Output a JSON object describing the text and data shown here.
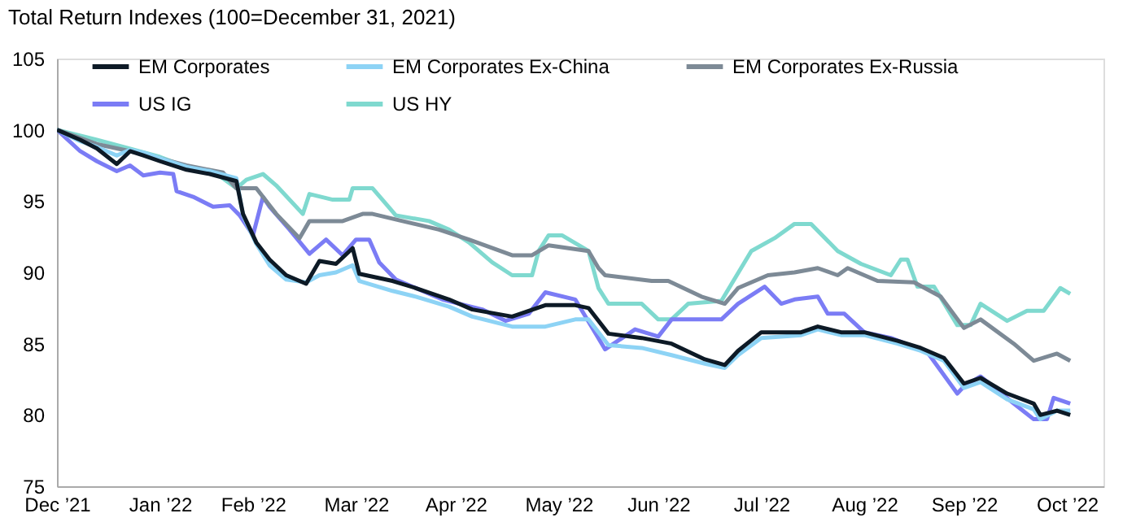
{
  "chart_data": {
    "type": "line",
    "title": "Total Return Indexes (100=December 31, 2021)",
    "xlim": [
      "2021-12-31",
      "2022-11-11"
    ],
    "xticks": [
      {
        "value": "2021-12-31",
        "label": "Dec ’21"
      },
      {
        "value": "2022-01-31",
        "label": "Jan ’22"
      },
      {
        "value": "2022-02-28",
        "label": "Feb ’22"
      },
      {
        "value": "2022-03-31",
        "label": "Mar ’22"
      },
      {
        "value": "2022-04-30",
        "label": "Apr ’22"
      },
      {
        "value": "2022-05-31",
        "label": "May ’22"
      },
      {
        "value": "2022-06-30",
        "label": "Jun ’22"
      },
      {
        "value": "2022-07-31",
        "label": "Jul ’22"
      },
      {
        "value": "2022-08-31",
        "label": "Aug ’22"
      },
      {
        "value": "2022-09-30",
        "label": "Sep ’22"
      },
      {
        "value": "2022-10-31",
        "label": "Oct ’22"
      }
    ],
    "ylim": [
      75,
      105
    ],
    "yticks": [
      75,
      80,
      85,
      90,
      95,
      100,
      105
    ],
    "grid": false,
    "legend": "top",
    "line_style": "solid",
    "marker": "none",
    "series": [
      {
        "name": "EM Corporates",
        "color": "#0d1a26",
        "x": [
          "2021-12-31",
          "2022-01-07",
          "2022-01-12",
          "2022-01-18",
          "2022-01-22",
          "2022-01-26",
          "2022-01-31",
          "2022-02-08",
          "2022-02-15",
          "2022-02-23",
          "2022-02-25",
          "2022-03-01",
          "2022-03-05",
          "2022-03-10",
          "2022-03-16",
          "2022-03-20",
          "2022-03-25",
          "2022-03-30",
          "2022-04-01",
          "2022-04-11",
          "2022-04-18",
          "2022-04-28",
          "2022-05-05",
          "2022-05-17",
          "2022-05-27",
          "2022-06-05",
          "2022-06-09",
          "2022-06-15",
          "2022-06-25",
          "2022-07-04",
          "2022-07-14",
          "2022-07-20",
          "2022-07-24",
          "2022-07-31",
          "2022-08-12",
          "2022-08-17",
          "2022-08-24",
          "2022-08-31",
          "2022-09-10",
          "2022-09-17",
          "2022-09-24",
          "2022-09-30",
          "2022-10-05",
          "2022-10-13",
          "2022-10-21",
          "2022-10-23",
          "2022-10-28",
          "2022-11-01"
        ],
        "values": [
          100,
          99.3,
          98.7,
          97.6,
          98.5,
          98.2,
          97.8,
          97.2,
          96.9,
          96.4,
          94.1,
          92.1,
          90.9,
          89.8,
          89.2,
          90.8,
          90.6,
          91.7,
          89.9,
          89.4,
          88.9,
          88.1,
          87.4,
          86.9,
          87.7,
          87.7,
          87.5,
          85.7,
          85.4,
          85.0,
          83.9,
          83.5,
          84.5,
          85.8,
          85.8,
          86.2,
          85.8,
          85.8,
          85.2,
          84.7,
          84.0,
          82.2,
          82.6,
          81.5,
          80.8,
          80.0,
          80.3,
          80.0
        ]
      },
      {
        "name": "EM Corporates Ex-China",
        "color": "#8dd3f5",
        "x": [
          "2021-12-31",
          "2022-01-07",
          "2022-01-12",
          "2022-01-18",
          "2022-01-22",
          "2022-01-26",
          "2022-01-31",
          "2022-02-08",
          "2022-02-15",
          "2022-02-23",
          "2022-02-25",
          "2022-03-01",
          "2022-03-05",
          "2022-03-10",
          "2022-03-16",
          "2022-03-20",
          "2022-03-25",
          "2022-03-30",
          "2022-04-01",
          "2022-04-11",
          "2022-04-18",
          "2022-04-28",
          "2022-05-05",
          "2022-05-17",
          "2022-05-27",
          "2022-06-05",
          "2022-06-09",
          "2022-06-15",
          "2022-06-25",
          "2022-07-04",
          "2022-07-14",
          "2022-07-20",
          "2022-07-24",
          "2022-07-31",
          "2022-08-12",
          "2022-08-17",
          "2022-08-24",
          "2022-08-31",
          "2022-09-10",
          "2022-09-17",
          "2022-09-24",
          "2022-09-30",
          "2022-10-05",
          "2022-10-13",
          "2022-10-21",
          "2022-10-23",
          "2022-10-28",
          "2022-11-01"
        ],
        "values": [
          100,
          99.2,
          98.8,
          98.2,
          98.6,
          98.4,
          98.0,
          97.4,
          97.1,
          96.6,
          94.0,
          92.0,
          90.5,
          89.5,
          89.3,
          89.8,
          90.0,
          90.5,
          89.4,
          88.7,
          88.3,
          87.6,
          86.9,
          86.2,
          86.2,
          86.7,
          86.7,
          84.9,
          84.7,
          84.2,
          83.6,
          83.3,
          84.2,
          85.4,
          85.6,
          86.0,
          85.6,
          85.6,
          85.0,
          84.5,
          83.8,
          81.9,
          82.3,
          81.1,
          80.4,
          79.7,
          80.3,
          80.3
        ]
      },
      {
        "name": "EM Corporates Ex-Russia",
        "color": "#7d8a96",
        "x": [
          "2021-12-31",
          "2022-01-12",
          "2022-01-26",
          "2022-02-08",
          "2022-02-19",
          "2022-02-23",
          "2022-03-01",
          "2022-03-07",
          "2022-03-14",
          "2022-03-17",
          "2022-03-27",
          "2022-04-02",
          "2022-04-05",
          "2022-04-14",
          "2022-04-25",
          "2022-05-04",
          "2022-05-17",
          "2022-05-23",
          "2022-05-28",
          "2022-06-09",
          "2022-06-12",
          "2022-06-14",
          "2022-06-28",
          "2022-07-03",
          "2022-07-13",
          "2022-07-20",
          "2022-07-24",
          "2022-08-02",
          "2022-08-10",
          "2022-08-17",
          "2022-08-23",
          "2022-08-26",
          "2022-09-04",
          "2022-09-15",
          "2022-09-23",
          "2022-09-30",
          "2022-10-05",
          "2022-10-15",
          "2022-10-21",
          "2022-10-28",
          "2022-11-01"
        ],
        "values": [
          100,
          99.0,
          98.3,
          97.5,
          97.0,
          95.9,
          95.9,
          94.1,
          92.4,
          93.6,
          93.6,
          94.1,
          94.1,
          93.6,
          93.0,
          92.3,
          91.2,
          91.2,
          91.9,
          91.5,
          90.3,
          89.8,
          89.4,
          89.4,
          88.3,
          87.8,
          88.9,
          89.8,
          90.0,
          90.3,
          89.8,
          90.3,
          89.4,
          89.3,
          88.3,
          86.1,
          86.7,
          85.0,
          83.8,
          84.3,
          83.8
        ]
      },
      {
        "name": "US IG",
        "color": "#7b7cf5",
        "x": [
          "2021-12-31",
          "2022-01-07",
          "2022-01-12",
          "2022-01-18",
          "2022-01-22",
          "2022-01-26",
          "2022-01-31",
          "2022-02-04",
          "2022-02-05",
          "2022-02-10",
          "2022-02-16",
          "2022-02-21",
          "2022-02-24",
          "2022-02-28",
          "2022-03-03",
          "2022-03-05",
          "2022-03-11",
          "2022-03-17",
          "2022-03-22",
          "2022-03-27",
          "2022-03-31",
          "2022-04-04",
          "2022-04-07",
          "2022-04-12",
          "2022-04-26",
          "2022-05-08",
          "2022-05-15",
          "2022-05-22",
          "2022-05-27",
          "2022-06-05",
          "2022-06-14",
          "2022-06-23",
          "2022-06-30",
          "2022-07-04",
          "2022-07-19",
          "2022-07-24",
          "2022-08-01",
          "2022-08-06",
          "2022-08-10",
          "2022-08-17",
          "2022-08-20",
          "2022-08-25",
          "2022-08-31",
          "2022-09-08",
          "2022-09-19",
          "2022-09-28",
          "2022-09-30",
          "2022-10-05",
          "2022-10-15",
          "2022-10-21",
          "2022-10-25",
          "2022-10-27",
          "2022-11-01"
        ],
        "values": [
          100,
          98.5,
          97.8,
          97.1,
          97.5,
          96.8,
          97.0,
          96.9,
          95.7,
          95.3,
          94.6,
          94.7,
          94.0,
          92.6,
          95.3,
          94.6,
          93.0,
          91.3,
          92.3,
          91.2,
          92.3,
          92.3,
          90.7,
          89.5,
          88.1,
          87.4,
          86.6,
          87.1,
          88.6,
          88.1,
          84.6,
          86.0,
          85.5,
          86.7,
          86.7,
          87.8,
          89.0,
          87.8,
          88.1,
          88.3,
          87.1,
          87.1,
          85.8,
          85.4,
          84.4,
          81.5,
          82.0,
          82.7,
          80.8,
          79.7,
          79.7,
          81.2,
          80.8
        ]
      },
      {
        "name": "US HY",
        "color": "#7fd9cf",
        "x": [
          "2021-12-31",
          "2022-01-12",
          "2022-01-20",
          "2022-01-31",
          "2022-02-09",
          "2022-02-16",
          "2022-02-23",
          "2022-02-26",
          "2022-03-03",
          "2022-03-07",
          "2022-03-15",
          "2022-03-17",
          "2022-03-24",
          "2022-03-29",
          "2022-03-30",
          "2022-04-05",
          "2022-04-12",
          "2022-04-22",
          "2022-04-28",
          "2022-05-04",
          "2022-05-11",
          "2022-05-17",
          "2022-05-23",
          "2022-05-25",
          "2022-05-28",
          "2022-06-01",
          "2022-06-09",
          "2022-06-12",
          "2022-06-15",
          "2022-06-25",
          "2022-06-30",
          "2022-07-04",
          "2022-07-09",
          "2022-07-19",
          "2022-07-28",
          "2022-08-04",
          "2022-08-10",
          "2022-08-15",
          "2022-08-23",
          "2022-08-30",
          "2022-09-08",
          "2022-09-11",
          "2022-09-13",
          "2022-09-16",
          "2022-09-21",
          "2022-09-28",
          "2022-10-02",
          "2022-10-05",
          "2022-10-13",
          "2022-10-19",
          "2022-10-24",
          "2022-10-29",
          "2022-11-01"
        ],
        "values": [
          100,
          99.3,
          98.8,
          98.1,
          97.3,
          97.1,
          95.9,
          96.5,
          96.9,
          96.1,
          94.1,
          95.5,
          95.1,
          95.1,
          95.9,
          95.9,
          94.0,
          93.6,
          93.0,
          92.1,
          90.7,
          89.8,
          89.8,
          91.5,
          92.6,
          92.6,
          91.5,
          88.9,
          87.8,
          87.8,
          86.7,
          86.7,
          87.8,
          88.0,
          91.5,
          92.4,
          93.4,
          93.4,
          91.5,
          90.6,
          89.8,
          90.9,
          90.9,
          89.0,
          89.0,
          86.3,
          86.3,
          87.8,
          86.6,
          87.3,
          87.3,
          88.9,
          88.5
        ]
      }
    ]
  }
}
